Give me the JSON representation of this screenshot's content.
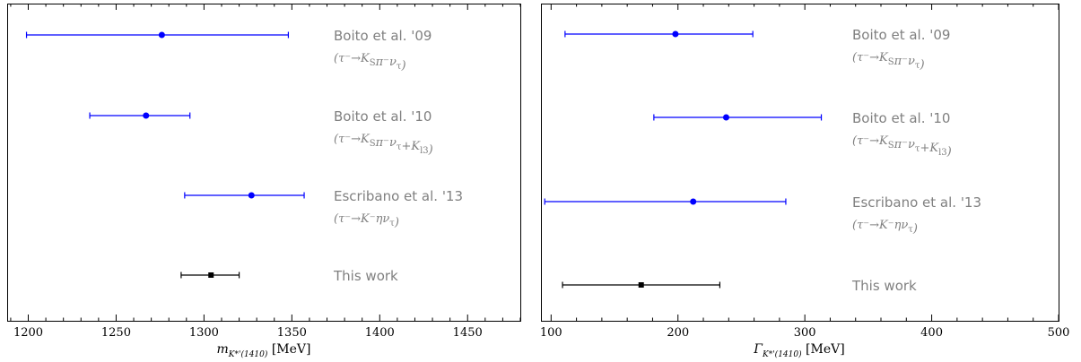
{
  "chart_data": [
    {
      "type": "scatter",
      "xlabel_symbol": "m",
      "xlabel_subscript": "K*'(1410)",
      "xlabel_unit": "[MeV]",
      "xlim": [
        1188,
        1480
      ],
      "xticks": [
        1200,
        1250,
        1300,
        1350,
        1400,
        1450
      ],
      "rows": [
        {
          "author": "Boito et al. '09",
          "process": "(τ⁻→K_Sπ⁻ν_τ)",
          "value": 1276,
          "lo": 1199,
          "hi": 1348,
          "color": "#0000ff",
          "marker": "circle"
        },
        {
          "author": "Boito et al. '10",
          "process": "(τ⁻→K_Sπ⁻ν_τ+K_l3)",
          "value": 1267,
          "lo": 1235,
          "hi": 1292,
          "color": "#0000ff",
          "marker": "circle"
        },
        {
          "author": "Escribano et al. '13",
          "process": "(τ⁻→K⁻ην_τ)",
          "value": 1327,
          "lo": 1289,
          "hi": 1357,
          "color": "#0000ff",
          "marker": "circle"
        },
        {
          "author": "This work",
          "process": "",
          "value": 1304,
          "lo": 1287,
          "hi": 1320,
          "color": "#000000",
          "marker": "square"
        }
      ]
    },
    {
      "type": "scatter",
      "xlabel_symbol": "Γ",
      "xlabel_subscript": "K*'(1410)",
      "xlabel_unit": "[MeV]",
      "xlim": [
        92,
        500
      ],
      "xticks": [
        100,
        200,
        300,
        400,
        500
      ],
      "rows": [
        {
          "author": "Boito et al. '09",
          "process": "(τ⁻→K_Sπ⁻ν_τ)",
          "value": 198,
          "lo": 111,
          "hi": 259,
          "color": "#0000ff",
          "marker": "circle"
        },
        {
          "author": "Boito et al. '10",
          "process": "(τ⁻→K_Sπ⁻ν_τ+K_l3)",
          "value": 238,
          "lo": 181,
          "hi": 313,
          "color": "#0000ff",
          "marker": "circle"
        },
        {
          "author": "Escribano et al. '13",
          "process": "(τ⁻→K⁻ην_τ)",
          "value": 212,
          "lo": 95,
          "hi": 285,
          "color": "#0000ff",
          "marker": "circle"
        },
        {
          "author": "This work",
          "process": "",
          "value": 171,
          "lo": 109,
          "hi": 233,
          "color": "#000000",
          "marker": "square"
        }
      ]
    }
  ]
}
